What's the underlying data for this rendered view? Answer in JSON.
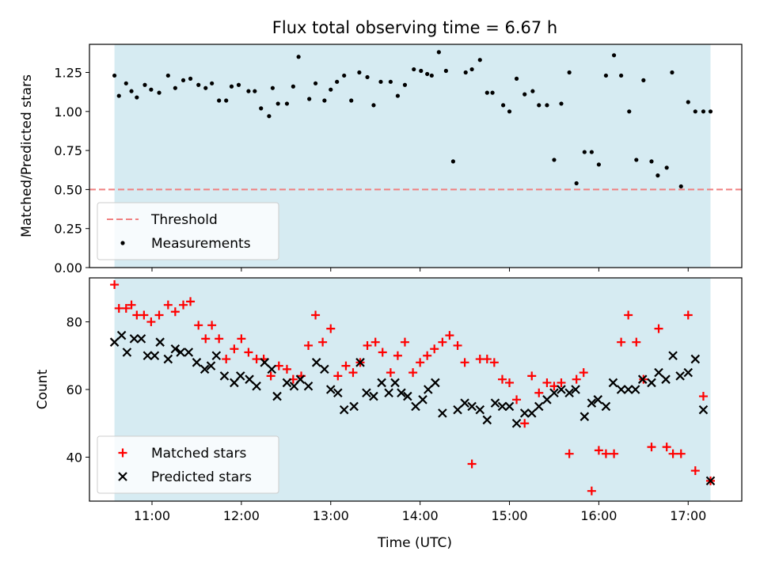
{
  "chart_data": {
    "title": "Flux total observing time = 6.67 h",
    "xlabel": "Time (UTC)",
    "x_units": "hours UTC",
    "xlim": [
      10.3,
      17.6
    ],
    "xticks": [
      11,
      12,
      13,
      14,
      15,
      16,
      17
    ],
    "xtick_labels": [
      "11:00",
      "12:00",
      "13:00",
      "14:00",
      "15:00",
      "16:00",
      "17:00"
    ],
    "observing_window": [
      10.58,
      17.25
    ],
    "window_color": "#add8e6",
    "panels": [
      {
        "type": "scatter",
        "ylabel": "Matched/Predicted stars",
        "ylim": [
          0,
          1.43
        ],
        "yticks": [
          0,
          0.25,
          0.5,
          0.75,
          1.0,
          1.25
        ],
        "ytick_labels": [
          "0.00",
          "0.25",
          "0.50",
          "0.75",
          "1.00",
          "1.25"
        ],
        "legend_position": "lower-left",
        "threshold": {
          "name": "Threshold",
          "value": 0.5,
          "color": "#f08080"
        },
        "series": [
          {
            "name": "Measurements",
            "marker": "dot",
            "color": "#000000",
            "x": [
              10.58,
              10.63,
              10.71,
              10.77,
              10.83,
              10.92,
              10.99,
              11.08,
              11.18,
              11.26,
              11.35,
              11.43,
              11.52,
              11.6,
              11.67,
              11.75,
              11.83,
              11.89,
              11.97,
              12.08,
              12.15,
              12.22,
              12.31,
              12.35,
              12.41,
              12.51,
              12.58,
              12.64,
              12.76,
              12.83,
              12.93,
              13.0,
              13.07,
              13.15,
              13.23,
              13.32,
              13.41,
              13.48,
              13.56,
              13.67,
              13.75,
              13.83,
              13.93,
              14.01,
              14.08,
              14.13,
              14.21,
              14.29,
              14.37,
              14.51,
              14.58,
              14.67,
              14.75,
              14.81,
              14.93,
              15.0,
              15.08,
              15.17,
              15.26,
              15.33,
              15.42,
              15.5,
              15.58,
              15.67,
              15.75,
              15.84,
              15.92,
              16.0,
              16.08,
              16.17,
              16.25,
              16.34,
              16.42,
              16.5,
              16.59,
              16.66,
              16.76,
              16.82,
              16.92,
              17.0,
              17.08,
              17.17,
              17.25
            ],
            "y": [
              1.23,
              1.1,
              1.18,
              1.13,
              1.09,
              1.17,
              1.14,
              1.12,
              1.23,
              1.15,
              1.2,
              1.21,
              1.17,
              1.15,
              1.18,
              1.07,
              1.07,
              1.16,
              1.17,
              1.13,
              1.13,
              1.02,
              0.97,
              1.15,
              1.05,
              1.05,
              1.16,
              1.35,
              1.08,
              1.18,
              1.07,
              1.14,
              1.19,
              1.23,
              1.07,
              1.25,
              1.22,
              1.04,
              1.19,
              1.19,
              1.1,
              1.17,
              1.27,
              1.26,
              1.24,
              1.23,
              1.38,
              1.26,
              0.68,
              1.25,
              1.27,
              1.33,
              1.12,
              1.12,
              1.04,
              1.0,
              1.21,
              1.11,
              1.13,
              1.04,
              1.04,
              0.69,
              1.05,
              1.25,
              0.54,
              0.74,
              0.74,
              0.66,
              1.23,
              1.36,
              1.23,
              1.0,
              0.69,
              1.2,
              0.68,
              0.59,
              0.64,
              1.25,
              0.52,
              1.06,
              1.0,
              1.0,
              1.0
            ]
          }
        ]
      },
      {
        "type": "scatter",
        "ylabel": "Count",
        "ylim": [
          27,
          93
        ],
        "yticks": [
          40,
          60,
          80
        ],
        "ytick_labels": [
          "40",
          "60",
          "80"
        ],
        "legend_position": "lower-left",
        "series": [
          {
            "name": "Matched stars",
            "marker": "plus",
            "color": "#ff0000",
            "x": [
              10.58,
              10.63,
              10.71,
              10.77,
              10.83,
              10.91,
              10.99,
              11.08,
              11.18,
              11.26,
              11.35,
              11.43,
              11.52,
              11.6,
              11.67,
              11.75,
              11.83,
              11.92,
              12.0,
              12.08,
              12.17,
              12.25,
              12.33,
              12.42,
              12.51,
              12.58,
              12.67,
              12.75,
              12.83,
              12.91,
              13.0,
              13.08,
              13.17,
              13.25,
              13.33,
              13.41,
              13.5,
              13.58,
              13.67,
              13.75,
              13.83,
              13.92,
              14.0,
              14.08,
              14.16,
              14.25,
              14.33,
              14.42,
              14.5,
              14.58,
              14.67,
              14.75,
              14.83,
              14.92,
              15.0,
              15.08,
              15.17,
              15.25,
              15.33,
              15.42,
              15.5,
              15.58,
              15.67,
              15.75,
              15.83,
              15.92,
              16.0,
              16.08,
              16.17,
              16.25,
              16.33,
              16.42,
              16.5,
              16.59,
              16.67,
              16.76,
              16.83,
              16.92,
              17.0,
              17.08,
              17.17,
              17.25
            ],
            "y": [
              91,
              84,
              84,
              85,
              82,
              82,
              80,
              82,
              85,
              83,
              85,
              86,
              79,
              75,
              79,
              75,
              69,
              72,
              75,
              71,
              69,
              69,
              64,
              67,
              66,
              63,
              64,
              73,
              82,
              74,
              78,
              64,
              67,
              65,
              68,
              73,
              74,
              71,
              65,
              70,
              74,
              65,
              68,
              70,
              72,
              74,
              76,
              73,
              68,
              38,
              69,
              69,
              68,
              63,
              62,
              57,
              50,
              64,
              59,
              62,
              61,
              62,
              41,
              63,
              65,
              30,
              42,
              41,
              41,
              74,
              82,
              74,
              63,
              43,
              78,
              43,
              41,
              41,
              82,
              36,
              58,
              33
            ]
          },
          {
            "name": "Predicted stars",
            "marker": "x",
            "color": "#000000",
            "x": [
              10.58,
              10.66,
              10.72,
              10.8,
              10.88,
              10.95,
              11.03,
              11.09,
              11.18,
              11.26,
              11.32,
              11.41,
              11.5,
              11.59,
              11.66,
              11.72,
              11.81,
              11.92,
              11.99,
              12.09,
              12.17,
              12.26,
              12.34,
              12.4,
              12.51,
              12.59,
              12.66,
              12.75,
              12.84,
              12.93,
              13.0,
              13.08,
              13.15,
              13.26,
              13.33,
              13.4,
              13.48,
              13.57,
              13.65,
              13.72,
              13.79,
              13.86,
              13.95,
              14.03,
              14.09,
              14.17,
              14.25,
              14.42,
              14.5,
              14.58,
              14.67,
              14.75,
              14.84,
              14.92,
              15.0,
              15.08,
              15.17,
              15.25,
              15.33,
              15.42,
              15.5,
              15.58,
              15.67,
              15.74,
              15.84,
              15.92,
              15.99,
              16.08,
              16.16,
              16.25,
              16.33,
              16.41,
              16.49,
              16.59,
              16.67,
              16.75,
              16.83,
              16.91,
              17.0,
              17.08,
              17.17,
              17.25
            ],
            "y": [
              74,
              76,
              71,
              75,
              75,
              70,
              70,
              74,
              69,
              72,
              71,
              71,
              68,
              66,
              67,
              70,
              64,
              62,
              64,
              63,
              61,
              68,
              66,
              58,
              62,
              61,
              63,
              61,
              68,
              66,
              60,
              59,
              54,
              55,
              68,
              59,
              58,
              62,
              59,
              62,
              59,
              58,
              55,
              57,
              60,
              62,
              53,
              54,
              56,
              55,
              54,
              51,
              56,
              55,
              55,
              50,
              53,
              53,
              55,
              57,
              59,
              60,
              59,
              60,
              52,
              56,
              57,
              55,
              62,
              60,
              60,
              60,
              63,
              62,
              65,
              63,
              70,
              64,
              65,
              69,
              54,
              33
            ]
          }
        ]
      }
    ]
  }
}
